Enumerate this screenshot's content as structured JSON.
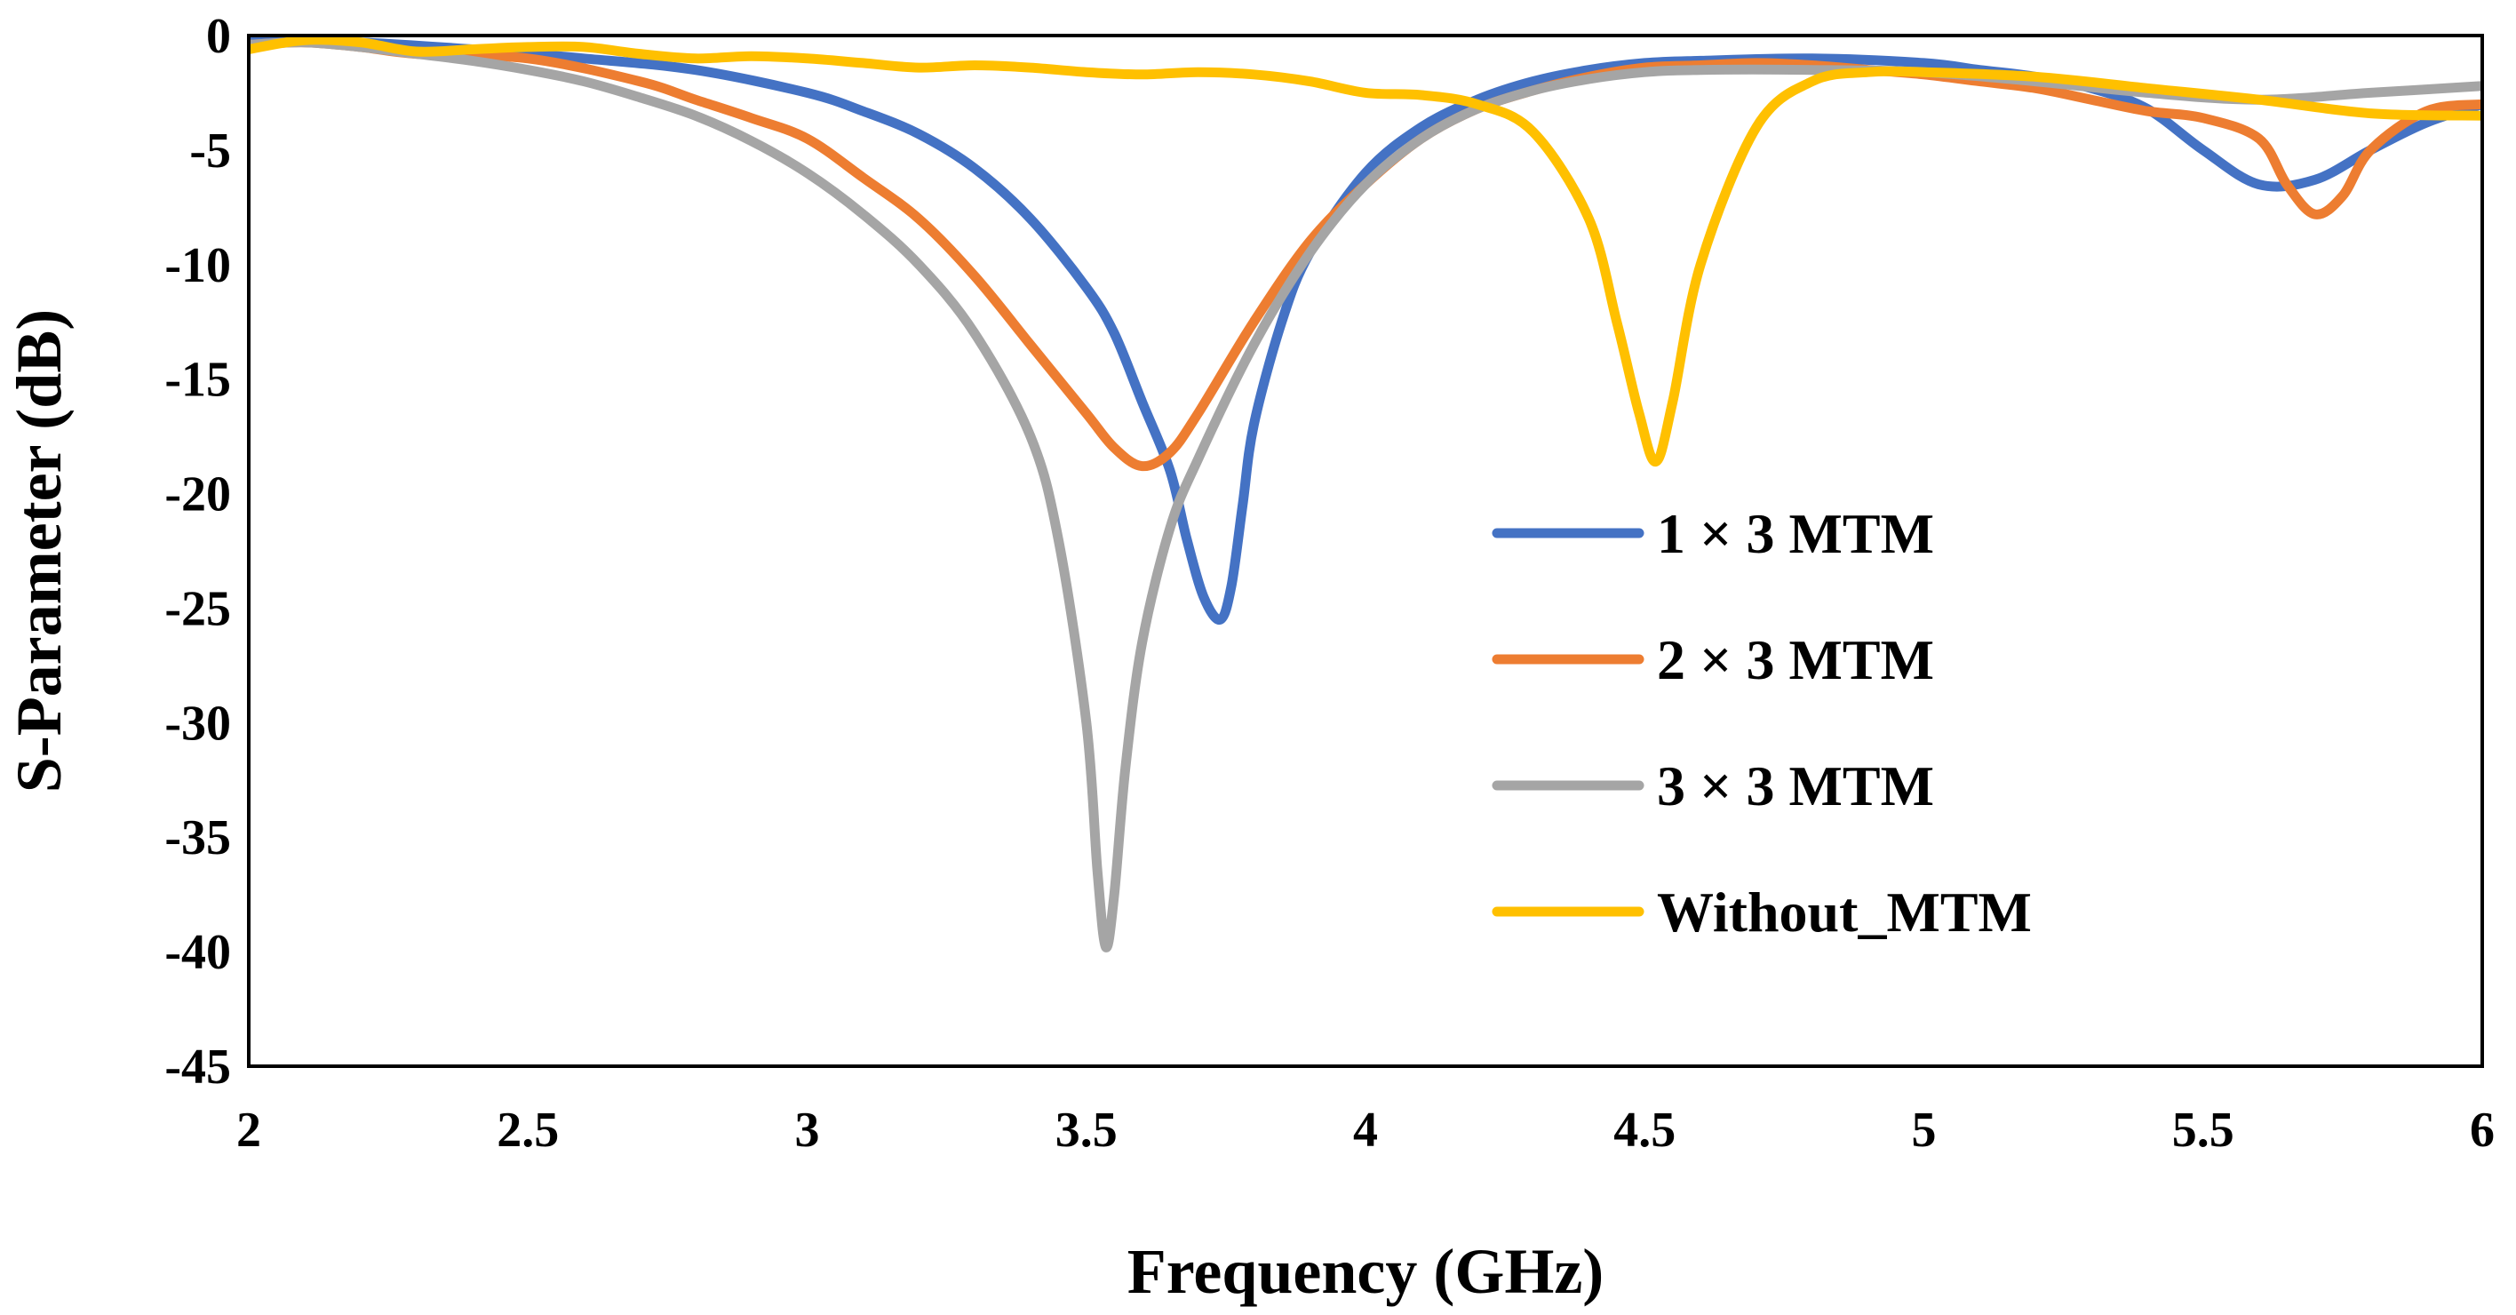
{
  "chart_data": {
    "type": "line",
    "title": "",
    "xlabel": "Frequency (GHz)",
    "ylabel": "S-Parameter (dB)",
    "xlim": [
      2,
      6
    ],
    "ylim": [
      -45,
      0
    ],
    "xticks": [
      "2",
      "2.5",
      "3",
      "3.5",
      "4",
      "4.5",
      "5",
      "5.5",
      "6"
    ],
    "yticks": [
      "0",
      "-5",
      "-10",
      "-15",
      "-20",
      "-25",
      "-30",
      "-35",
      "-40",
      "-45"
    ],
    "grid": false,
    "legend_position": "center-right",
    "series": [
      {
        "name": "1 × 3 MTM",
        "color": "#4472C4",
        "points": [
          [
            2,
            -0.2
          ],
          [
            2.2,
            -0.3
          ],
          [
            2.4,
            -0.6
          ],
          [
            2.6,
            -1.0
          ],
          [
            2.8,
            -1.5
          ],
          [
            3.0,
            -2.5
          ],
          [
            3.1,
            -3.3
          ],
          [
            3.2,
            -4.3
          ],
          [
            3.3,
            -5.8
          ],
          [
            3.4,
            -8.0
          ],
          [
            3.5,
            -11.0
          ],
          [
            3.55,
            -13.0
          ],
          [
            3.6,
            -16.0
          ],
          [
            3.65,
            -19.0
          ],
          [
            3.68,
            -22.0
          ],
          [
            3.71,
            -24.5
          ],
          [
            3.74,
            -25.5
          ],
          [
            3.76,
            -24.0
          ],
          [
            3.78,
            -20.5
          ],
          [
            3.8,
            -17.0
          ],
          [
            3.85,
            -12.5
          ],
          [
            3.9,
            -9.5
          ],
          [
            4.0,
            -6.0
          ],
          [
            4.1,
            -4.0
          ],
          [
            4.2,
            -2.8
          ],
          [
            4.3,
            -2.0
          ],
          [
            4.4,
            -1.5
          ],
          [
            4.5,
            -1.2
          ],
          [
            4.6,
            -1.1
          ],
          [
            4.8,
            -1.0
          ],
          [
            5.0,
            -1.2
          ],
          [
            5.1,
            -1.5
          ],
          [
            5.2,
            -1.8
          ],
          [
            5.3,
            -2.3
          ],
          [
            5.4,
            -3.2
          ],
          [
            5.5,
            -5.0
          ],
          [
            5.6,
            -6.5
          ],
          [
            5.7,
            -6.3
          ],
          [
            5.8,
            -5.0
          ],
          [
            5.9,
            -3.8
          ],
          [
            6.0,
            -3.0
          ]
        ]
      },
      {
        "name": "2 × 3 MTM",
        "color": "#ED7D31",
        "points": [
          [
            2,
            -0.4
          ],
          [
            2.1,
            -0.3
          ],
          [
            2.2,
            -0.5
          ],
          [
            2.3,
            -0.8
          ],
          [
            2.5,
            -1.0
          ],
          [
            2.7,
            -2.0
          ],
          [
            2.8,
            -2.8
          ],
          [
            2.9,
            -3.6
          ],
          [
            3.0,
            -4.5
          ],
          [
            3.1,
            -6.2
          ],
          [
            3.2,
            -8.0
          ],
          [
            3.3,
            -10.5
          ],
          [
            3.4,
            -13.5
          ],
          [
            3.5,
            -16.5
          ],
          [
            3.55,
            -18.0
          ],
          [
            3.6,
            -18.8
          ],
          [
            3.65,
            -18.2
          ],
          [
            3.7,
            -16.5
          ],
          [
            3.8,
            -12.5
          ],
          [
            3.9,
            -9.0
          ],
          [
            4.0,
            -6.5
          ],
          [
            4.1,
            -4.5
          ],
          [
            4.2,
            -3.2
          ],
          [
            4.3,
            -2.4
          ],
          [
            4.4,
            -1.8
          ],
          [
            4.5,
            -1.4
          ],
          [
            4.6,
            -1.3
          ],
          [
            4.7,
            -1.2
          ],
          [
            4.8,
            -1.3
          ],
          [
            4.9,
            -1.5
          ],
          [
            5.0,
            -1.7
          ],
          [
            5.1,
            -2.0
          ],
          [
            5.2,
            -2.3
          ],
          [
            5.3,
            -2.8
          ],
          [
            5.4,
            -3.3
          ],
          [
            5.5,
            -3.6
          ],
          [
            5.6,
            -4.5
          ],
          [
            5.65,
            -6.5
          ],
          [
            5.7,
            -7.8
          ],
          [
            5.75,
            -7.0
          ],
          [
            5.8,
            -5.0
          ],
          [
            5.9,
            -3.3
          ],
          [
            6.0,
            -3.0
          ]
        ]
      },
      {
        "name": "3 × 3 MTM",
        "color": "#A5A5A5",
        "points": [
          [
            2,
            -0.4
          ],
          [
            2.1,
            -0.3
          ],
          [
            2.2,
            -0.5
          ],
          [
            2.3,
            -0.8
          ],
          [
            2.4,
            -1.1
          ],
          [
            2.5,
            -1.5
          ],
          [
            2.6,
            -2.0
          ],
          [
            2.7,
            -2.7
          ],
          [
            2.8,
            -3.5
          ],
          [
            2.9,
            -4.6
          ],
          [
            3.0,
            -6.0
          ],
          [
            3.1,
            -7.8
          ],
          [
            3.2,
            -10.0
          ],
          [
            3.3,
            -13.0
          ],
          [
            3.4,
            -17.5
          ],
          [
            3.45,
            -22.0
          ],
          [
            3.5,
            -30.0
          ],
          [
            3.52,
            -36.5
          ],
          [
            3.535,
            -39.8
          ],
          [
            3.55,
            -37.5
          ],
          [
            3.57,
            -32.0
          ],
          [
            3.6,
            -26.5
          ],
          [
            3.65,
            -21.5
          ],
          [
            3.7,
            -18.5
          ],
          [
            3.8,
            -13.5
          ],
          [
            3.9,
            -9.5
          ],
          [
            4.0,
            -6.5
          ],
          [
            4.1,
            -4.5
          ],
          [
            4.2,
            -3.2
          ],
          [
            4.3,
            -2.4
          ],
          [
            4.4,
            -1.9
          ],
          [
            4.5,
            -1.6
          ],
          [
            4.6,
            -1.5
          ],
          [
            4.8,
            -1.5
          ],
          [
            5.0,
            -1.6
          ],
          [
            5.2,
            -2.0
          ],
          [
            5.4,
            -2.5
          ],
          [
            5.6,
            -2.8
          ],
          [
            5.8,
            -2.5
          ],
          [
            6.0,
            -2.2
          ]
        ]
      },
      {
        "name": "Without_MTM",
        "color": "#FFC000",
        "points": [
          [
            2,
            -0.6
          ],
          [
            2.1,
            -0.2
          ],
          [
            2.2,
            -0.3
          ],
          [
            2.3,
            -0.7
          ],
          [
            2.4,
            -0.6
          ],
          [
            2.5,
            -0.5
          ],
          [
            2.6,
            -0.5
          ],
          [
            2.7,
            -0.8
          ],
          [
            2.8,
            -1.0
          ],
          [
            2.9,
            -0.9
          ],
          [
            3.0,
            -1.0
          ],
          [
            3.1,
            -1.2
          ],
          [
            3.2,
            -1.4
          ],
          [
            3.3,
            -1.3
          ],
          [
            3.4,
            -1.4
          ],
          [
            3.5,
            -1.6
          ],
          [
            3.6,
            -1.7
          ],
          [
            3.7,
            -1.6
          ],
          [
            3.8,
            -1.7
          ],
          [
            3.9,
            -2.0
          ],
          [
            4.0,
            -2.5
          ],
          [
            4.1,
            -2.6
          ],
          [
            4.2,
            -3.0
          ],
          [
            4.3,
            -4.2
          ],
          [
            4.4,
            -8.0
          ],
          [
            4.45,
            -12.5
          ],
          [
            4.49,
            -16.5
          ],
          [
            4.52,
            -18.6
          ],
          [
            4.55,
            -16.0
          ],
          [
            4.6,
            -10.0
          ],
          [
            4.7,
            -4.0
          ],
          [
            4.8,
            -2.0
          ],
          [
            4.9,
            -1.6
          ],
          [
            5.0,
            -1.6
          ],
          [
            5.2,
            -1.8
          ],
          [
            5.4,
            -2.3
          ],
          [
            5.6,
            -2.8
          ],
          [
            5.8,
            -3.4
          ],
          [
            6.0,
            -3.5
          ]
        ]
      }
    ]
  }
}
